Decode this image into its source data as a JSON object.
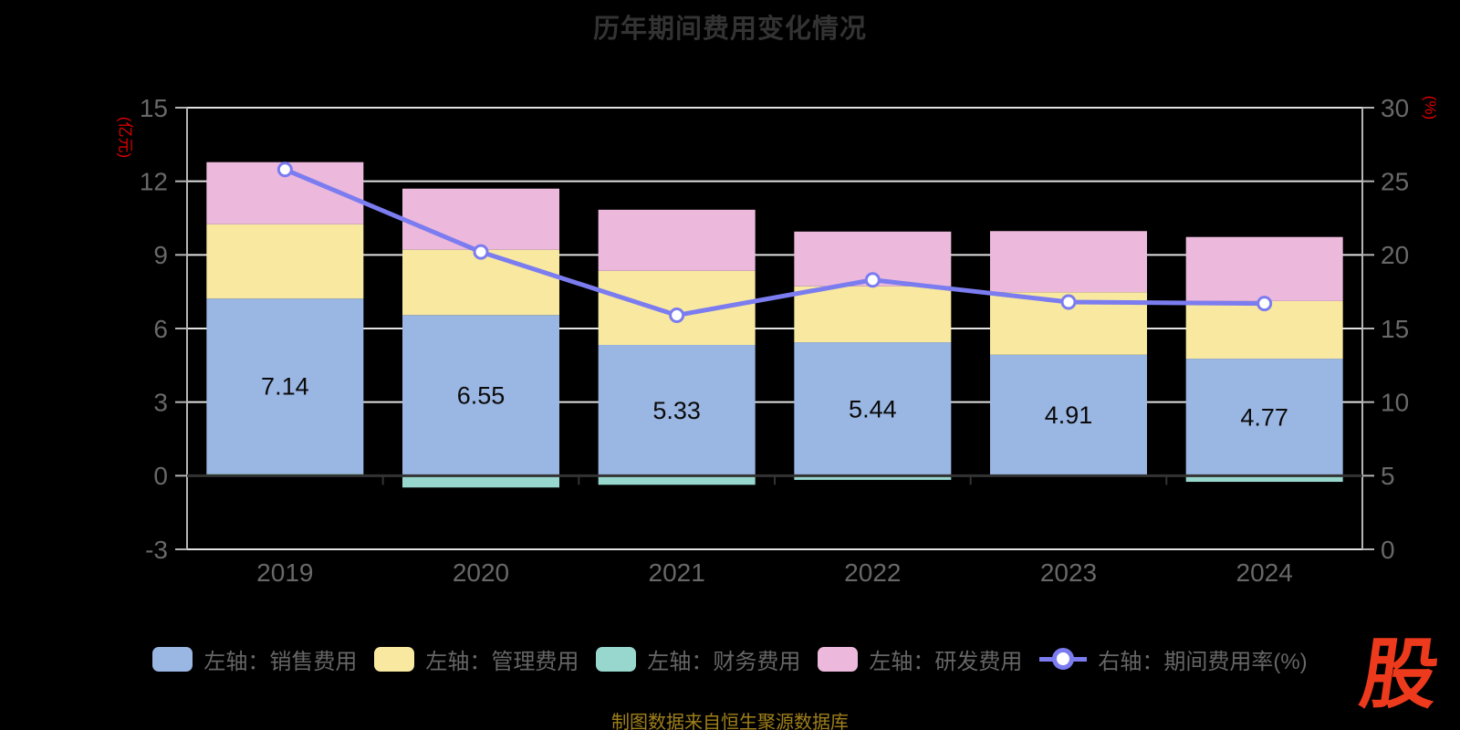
{
  "title": "历年期间费用变化情况",
  "source_note": "制图数据来自恒生聚源数据库",
  "logo_text": "股",
  "left_axis": {
    "name": "(亿元)",
    "ticks": [
      15,
      12,
      9,
      6,
      3,
      0,
      -3
    ],
    "color": "#e00000"
  },
  "right_axis": {
    "name": "(%)",
    "ticks": [
      30,
      25,
      20,
      15,
      10,
      5,
      0
    ],
    "color": "#e00000"
  },
  "x_axis": {
    "labels": [
      "2019",
      "2020",
      "2021",
      "2022",
      "2023",
      "2024"
    ]
  },
  "legend": [
    {
      "label": "左轴：销售费用",
      "type": "bar",
      "color": "#9ab6e2"
    },
    {
      "label": "左轴：管理费用",
      "type": "bar",
      "color": "#f8e8a0"
    },
    {
      "label": "左轴：财务费用",
      "type": "bar",
      "color": "#97d7cd"
    },
    {
      "label": "左轴：研发费用",
      "type": "bar",
      "color": "#ecb9dc"
    },
    {
      "label": "右轴：期间费用率(%)",
      "type": "line",
      "color": "#7b7cf0"
    }
  ],
  "chart_data": {
    "type": "bar+line",
    "title": "历年期间费用变化情况",
    "categories": [
      "2019",
      "2020",
      "2021",
      "2022",
      "2023",
      "2024"
    ],
    "left_ylim": [
      -3,
      15
    ],
    "right_ylim": [
      0,
      30
    ],
    "left_unit": "亿元",
    "right_unit": "%",
    "grid": true,
    "legend_position": "bottom",
    "series": [
      {
        "name": "左轴：销售费用",
        "key": "sales",
        "type": "bar",
        "stack": true,
        "axis": "left",
        "color": "#9ab6e2",
        "values": [
          7.14,
          6.55,
          5.33,
          5.44,
          4.91,
          4.77
        ],
        "labeled": true
      },
      {
        "name": "左轴：管理费用",
        "key": "management",
        "type": "bar",
        "stack": true,
        "axis": "left",
        "color": "#f8e8a0",
        "values": [
          3.03,
          2.66,
          3.02,
          2.28,
          2.55,
          2.35
        ],
        "labeled": false
      },
      {
        "name": "左轴：财务费用",
        "key": "financial",
        "type": "bar",
        "stack": true,
        "axis": "left",
        "color": "#97d7cd",
        "values": [
          0.08,
          -0.48,
          -0.37,
          -0.17,
          0.02,
          -0.25
        ],
        "labeled": false
      },
      {
        "name": "左轴：研发费用",
        "key": "rnd",
        "type": "bar",
        "stack": true,
        "axis": "left",
        "color": "#ecb9dc",
        "values": [
          2.53,
          2.49,
          2.49,
          2.23,
          2.49,
          2.61
        ],
        "labeled": false
      },
      {
        "name": "右轴：期间费用率(%)",
        "key": "expense_rate",
        "type": "line",
        "axis": "right",
        "color": "#7b7cf0",
        "marker_fill": "#ffffff",
        "values": [
          25.8,
          20.2,
          15.9,
          18.3,
          16.8,
          16.7
        ]
      }
    ],
    "stack_render_order": [
      2,
      0,
      1,
      3
    ],
    "bar_value_labels": [
      "7.14",
      "6.55",
      "5.33",
      "5.44",
      "4.91",
      "4.77"
    ]
  },
  "style_colors": {
    "background": "#000000",
    "gridline": "#e2e2e2",
    "axis_line": "#b5b5b5",
    "zero_axis_line": "#333333",
    "tick_label": "#686868",
    "title": "#333333",
    "legend_text": "#666666",
    "bar_label": "#0a0a0a",
    "source_text": "#a0801a",
    "logo": "#ee3a1c"
  }
}
